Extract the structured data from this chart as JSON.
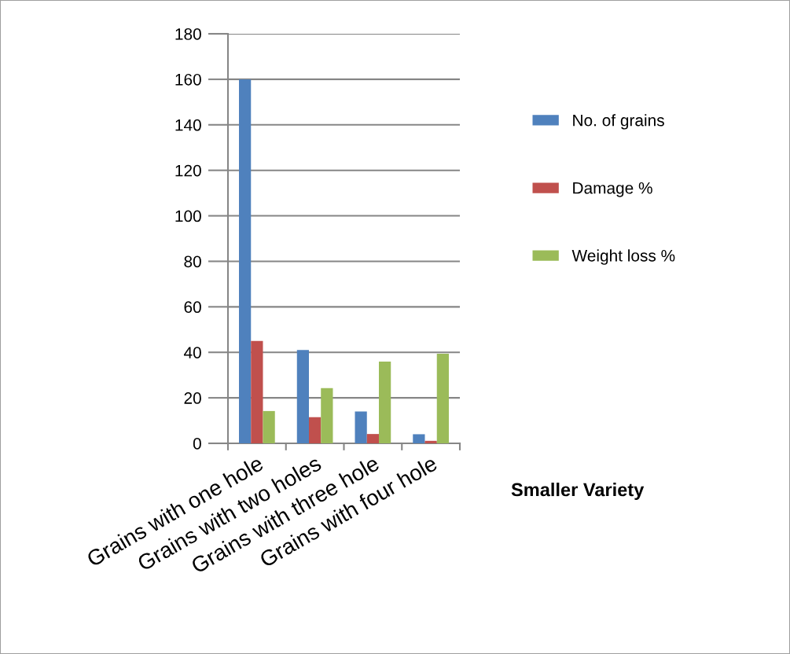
{
  "chart_data": {
    "type": "bar",
    "xlabel": "Smaller Variety",
    "categories": [
      "Grains with one hole",
      "Grains with two holes",
      "Grains with three hole",
      "Grains with four hole"
    ],
    "series": [
      {
        "name": "No. of grains",
        "color": "#4f81bd",
        "values": [
          160,
          41,
          14,
          4
        ]
      },
      {
        "name": "Damage %",
        "color": "#c0504d",
        "values": [
          45,
          11.5,
          4.1,
          1.1
        ]
      },
      {
        "name": "Weight loss %",
        "color": "#9bbb59",
        "values": [
          14.2,
          24.3,
          35.9,
          39.4
        ]
      }
    ],
    "ylim": [
      0,
      180
    ],
    "yticks": [
      0,
      20,
      40,
      60,
      80,
      100,
      120,
      140,
      160,
      180
    ],
    "legend": "right",
    "grid": "y"
  }
}
